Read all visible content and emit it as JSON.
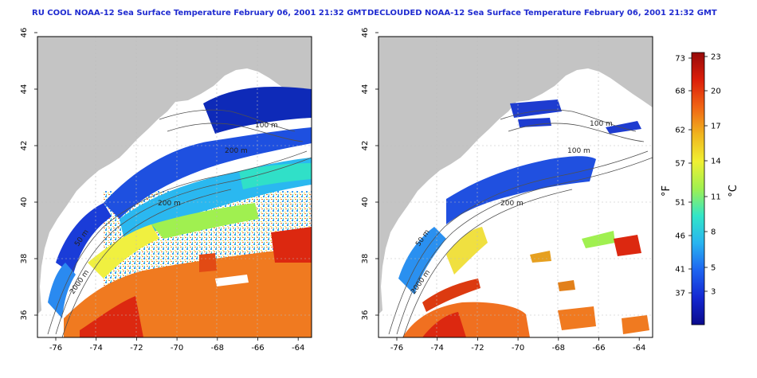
{
  "panels": [
    {
      "title": "RU COOL NOAA-12 Sea Surface Temperature February 06, 2001 21:32 GMT",
      "x_ticks": [
        "-76",
        "-74",
        "-72",
        "-70",
        "-68",
        "-66",
        "-64"
      ],
      "y_ticks": [
        "36",
        "38",
        "40",
        "42",
        "44",
        "46"
      ],
      "contour_labels": [
        "100 m",
        "200 m",
        "200 m",
        "50 m",
        "2000 m"
      ]
    },
    {
      "title": "DECLOUDED NOAA-12 Sea Surface Temperature February 06, 2001 21:32 GMT",
      "x_ticks": [
        "-76",
        "-74",
        "-72",
        "-70",
        "-68",
        "-66",
        "-64"
      ],
      "y_ticks": [
        "36",
        "38",
        "40",
        "42",
        "44",
        "46"
      ],
      "contour_labels": [
        "100 m",
        "100 m",
        "200 m",
        "50 m",
        "2000 m"
      ]
    }
  ],
  "colorbar": {
    "fahrenheit_ticks": [
      "73",
      "68",
      "62",
      "57",
      "51",
      "46",
      "41",
      "37"
    ],
    "celsius_ticks": [
      "23",
      "20",
      "17",
      "14",
      "11",
      "8",
      "5",
      "3"
    ],
    "fahrenheit_label": "°F",
    "celsius_label": "°C",
    "colors": [
      "#0a0a8c",
      "#1428d2",
      "#1e64f0",
      "#28b4f0",
      "#32e6c8",
      "#a0f050",
      "#f0f032",
      "#f0b41e",
      "#f06414",
      "#dc1e0a",
      "#960a0a"
    ]
  },
  "colors": {
    "land": "#c4c4c4",
    "title": "#1f2bd0",
    "contour": "#505050"
  }
}
